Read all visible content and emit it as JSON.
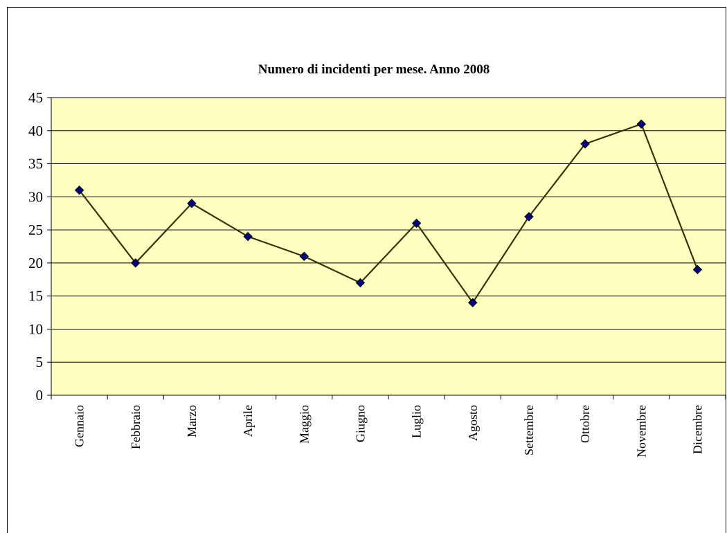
{
  "chart_data": {
    "type": "line",
    "title": "Numero di incidenti per mese. Anno 2008",
    "xlabel": "",
    "ylabel": "",
    "categories": [
      "Gennaio",
      "Febbraio",
      "Marzo",
      "Aprile",
      "Maggio",
      "Giugno",
      "Luglio",
      "Agosto",
      "Settembre",
      "Ottobre",
      "Novembre",
      "Dicembre"
    ],
    "series": [
      {
        "values": [
          31,
          20,
          29,
          24,
          21,
          17,
          26,
          14,
          27,
          38,
          41,
          19
        ]
      }
    ],
    "ylim": [
      0,
      45
    ],
    "yticks": [
      "0",
      "5",
      "10",
      "15",
      "20",
      "25",
      "30",
      "35",
      "40",
      "45"
    ],
    "grid": true,
    "legend": "none",
    "colors": {
      "plot_background": "#FFFFC0",
      "line": "#333300",
      "marker": "#000080",
      "gridline": "#000000"
    }
  }
}
